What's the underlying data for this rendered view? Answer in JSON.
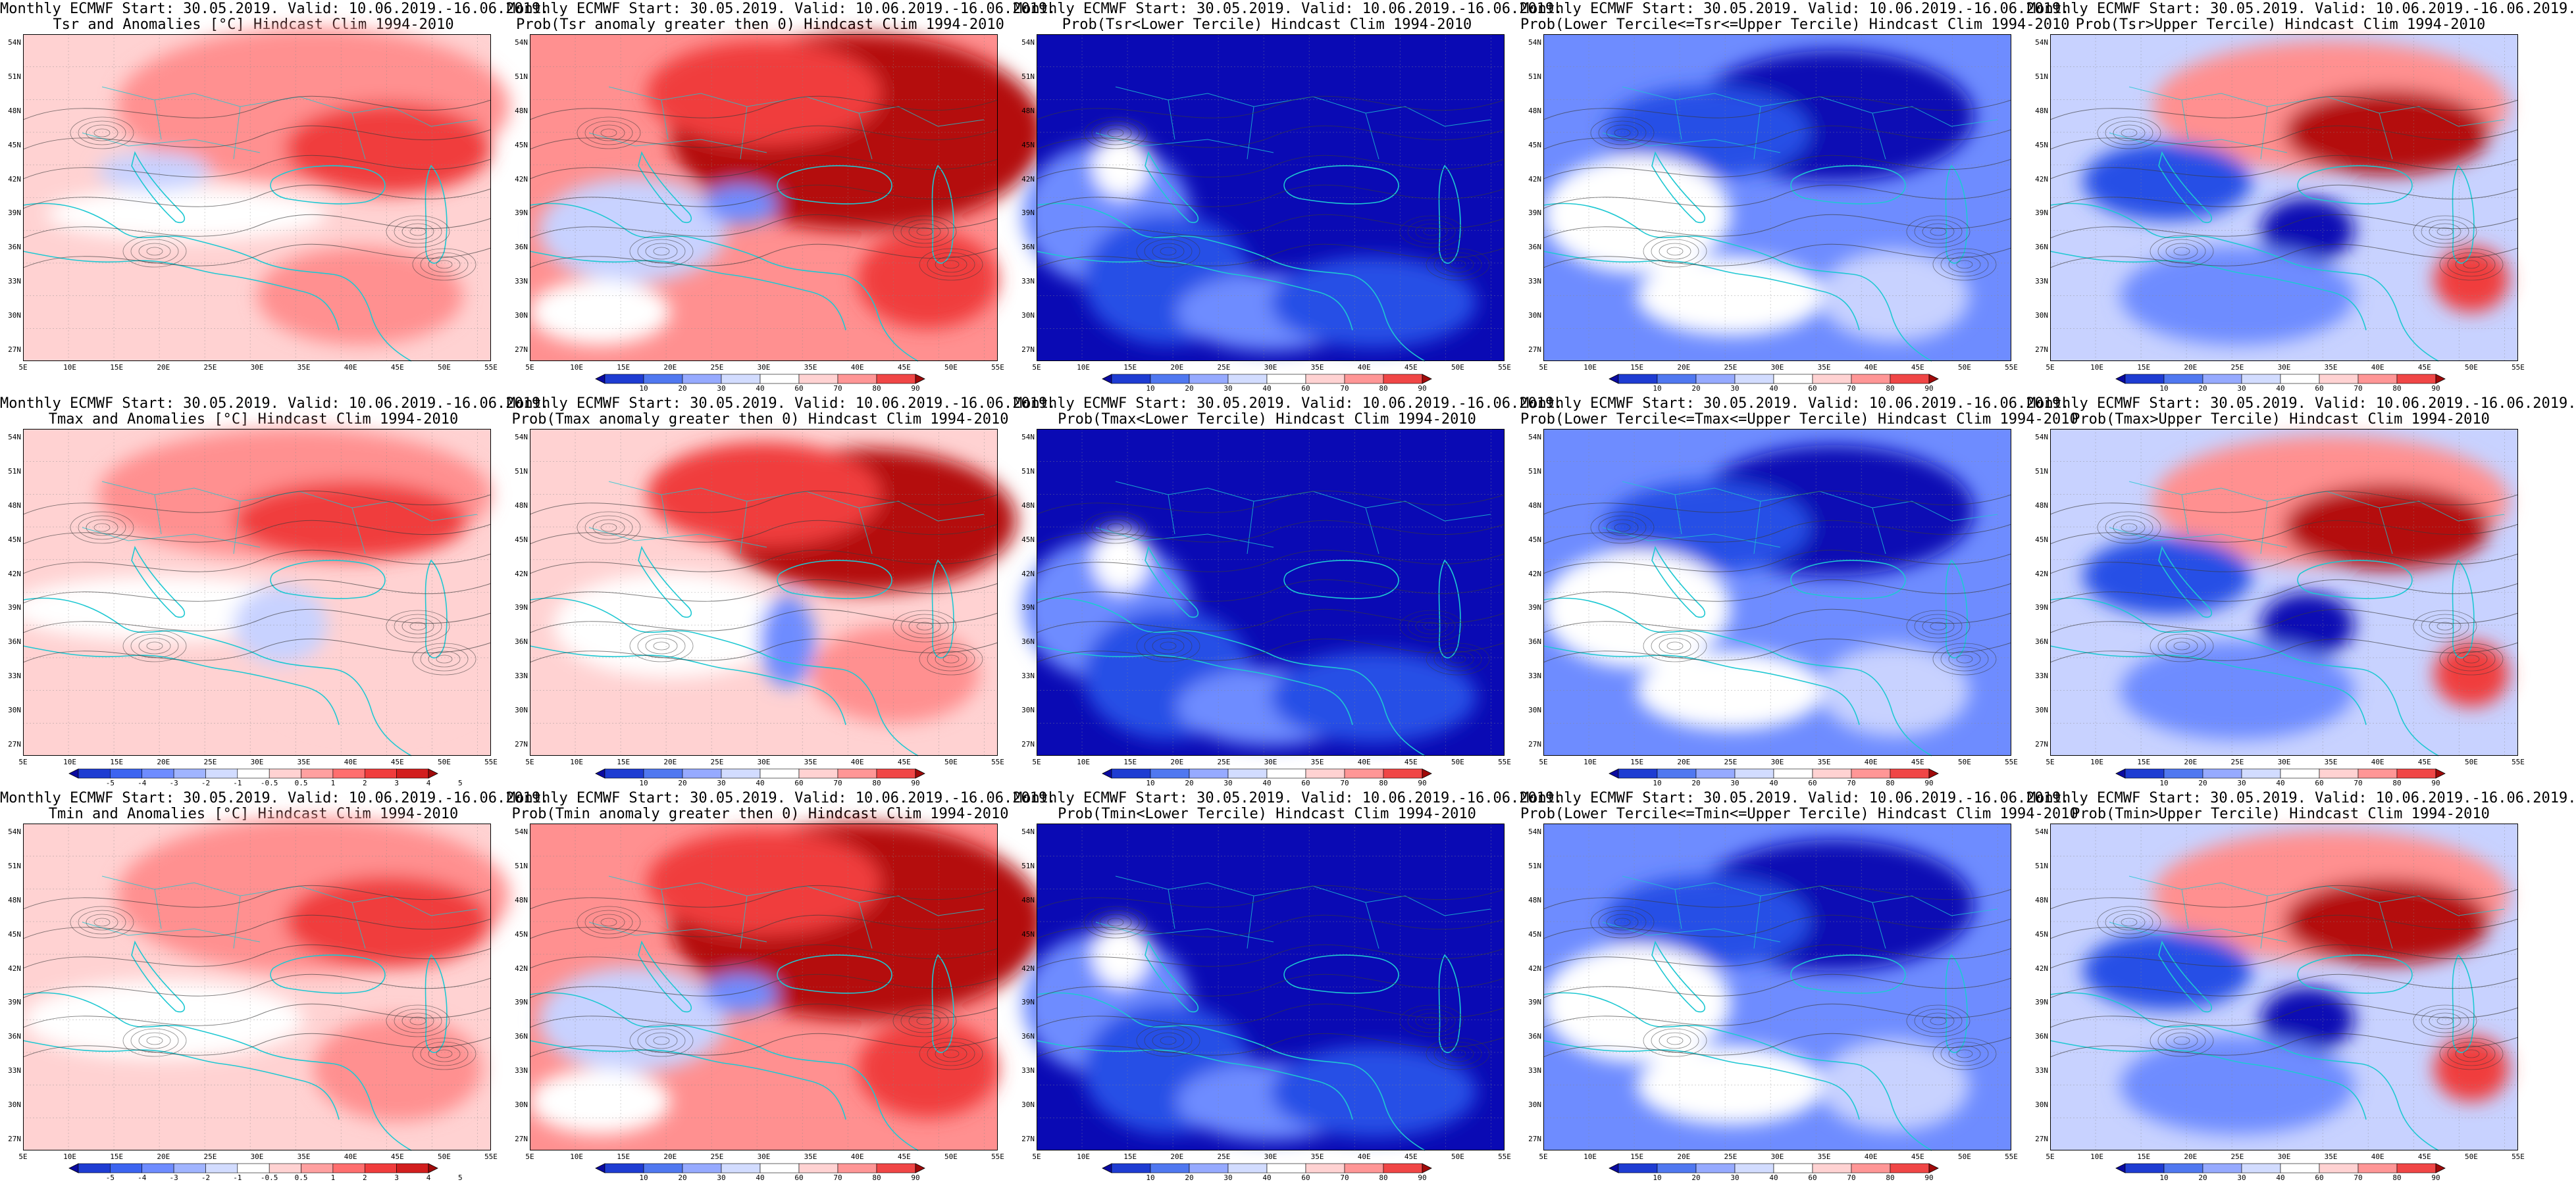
{
  "axes": {
    "lat_ticks": [
      "54N",
      "51N",
      "48N",
      "45N",
      "42N",
      "39N",
      "36N",
      "33N",
      "30N",
      "27N"
    ],
    "lon_ticks": [
      "5E",
      "10E",
      "15E",
      "20E",
      "25E",
      "30E",
      "35E",
      "40E",
      "45E",
      "50E",
      "55E"
    ]
  },
  "legends": {
    "anomaly": {
      "labels": [
        "-5",
        "-4",
        "-3",
        "-2",
        "-1",
        "-0.5",
        "0.5",
        "1",
        "2",
        "3",
        "4",
        "5"
      ],
      "colors": [
        "#0a0aa0",
        "#1e3cd2",
        "#3c64f0",
        "#6e8cff",
        "#a0b4ff",
        "#d2dcff",
        "#ffffff",
        "#ffd2d2",
        "#ffa0a0",
        "#ff6e6e",
        "#f03c3c",
        "#d21e1e",
        "#a00a0a"
      ]
    },
    "probability": {
      "labels": [
        "10",
        "20",
        "30",
        "40",
        "60",
        "70",
        "80",
        "90"
      ],
      "colors": [
        "#0a0aa0",
        "#1e3cd2",
        "#5078f0",
        "#96aaff",
        "#d2dcff",
        "#ffffff",
        "#ffd2d2",
        "#ff9696",
        "#f04646",
        "#a00a0a"
      ]
    }
  },
  "map_colors": {
    "white": "#ffffff",
    "red_light": "#ffd2d2",
    "red_mid": "#ff9090",
    "red_strong": "#f03c3c",
    "red_dark": "#b40a0a",
    "blue_light": "#c8d2ff",
    "blue_mid": "#6e8cff",
    "blue_strong": "#2850e6",
    "blue_dark": "#0a0ab4",
    "coast": "#1ec8d2",
    "contour": "#3a3a3a"
  },
  "panels": [
    {
      "title1": "Monthly ECMWF Start: 30.05.2019. Valid: 10.06.2019.-16.06.2019.",
      "title2": "Tsr and Anomalies [°C] Hindcast Clim 1994-2010",
      "legend": "anomaly",
      "scheme": "anom_tsr",
      "colorbar": false
    },
    {
      "title1": "Monthly ECMWF Start: 30.05.2019. Valid: 10.06.2019.-16.06.2019.",
      "title2": "Prob(Tsr anomaly greater then 0) Hindcast Clim 1994-2010",
      "legend": "probability",
      "scheme": "warm_strong",
      "colorbar": true
    },
    {
      "title1": "Monthly ECMWF Start: 30.05.2019. Valid: 10.06.2019.-16.06.2019.",
      "title2": "Prob(Tsr<Lower Tercile) Hindcast Clim 1994-2010",
      "legend": "probability",
      "scheme": "cold_strong",
      "colorbar": true
    },
    {
      "title1": "Monthly ECMWF Start: 30.05.2019. Valid: 10.06.2019.-16.06.2019.",
      "title2": "Prob(Lower Tercile<=Tsr<=Upper Tercile) Hindcast Clim 1994-2010",
      "legend": "probability",
      "scheme": "middle",
      "colorbar": true
    },
    {
      "title1": "Monthly ECMWF Start: 30.05.2019. Valid: 10.06.2019.-16.06.2019.",
      "title2": "Prob(Tsr>Upper Tercile) Hindcast Clim 1994-2010",
      "legend": "probability",
      "scheme": "upper",
      "colorbar": true
    },
    {
      "title1": "Monthly ECMWF Start: 30.05.2019. Valid: 10.06.2019.-16.06.2019.",
      "title2": "Tmax and Anomalies [°C] Hindcast Clim 1994-2010",
      "legend": "anomaly",
      "scheme": "anom_tmax",
      "colorbar": true
    },
    {
      "title1": "Monthly ECMWF Start: 30.05.2019. Valid: 10.06.2019.-16.06.2019.",
      "title2": "Prob(Tmax anomaly greater then 0) Hindcast Clim 1994-2010",
      "legend": "probability",
      "scheme": "warm_mid",
      "colorbar": true
    },
    {
      "title1": "Monthly ECMWF Start: 30.05.2019. Valid: 10.06.2019.-16.06.2019.",
      "title2": "Prob(Tmax<Lower Tercile) Hindcast Clim 1994-2010",
      "legend": "probability",
      "scheme": "cold_strong",
      "colorbar": true
    },
    {
      "title1": "Monthly ECMWF Start: 30.05.2019. Valid: 10.06.2019.-16.06.2019.",
      "title2": "Prob(Lower Tercile<=Tmax<=Upper Tercile) Hindcast Clim 1994-2010",
      "legend": "probability",
      "scheme": "middle",
      "colorbar": true
    },
    {
      "title1": "Monthly ECMWF Start: 30.05.2019. Valid: 10.06.2019.-16.06.2019.",
      "title2": "Prob(Tmax>Upper Tercile) Hindcast Clim 1994-2010",
      "legend": "probability",
      "scheme": "upper",
      "colorbar": true
    },
    {
      "title1": "Monthly ECMWF Start: 30.05.2019. Valid: 10.06.2019.-16.06.2019.",
      "title2": "Tmin and Anomalies [°C] Hindcast Clim 1994-2010",
      "legend": "anomaly",
      "scheme": "anom_tmin",
      "colorbar": true
    },
    {
      "title1": "Monthly ECMWF Start: 30.05.2019. Valid: 10.06.2019.-16.06.2019.",
      "title2": "Prob(Tmin anomaly greater then 0) Hindcast Clim 1994-2010",
      "legend": "probability",
      "scheme": "warm_strong",
      "colorbar": true
    },
    {
      "title1": "Monthly ECMWF Start: 30.05.2019. Valid: 10.06.2019.-16.06.2019.",
      "title2": "Prob(Tmin<Lower Tercile) Hindcast Clim 1994-2010",
      "legend": "probability",
      "scheme": "cold_strong",
      "colorbar": true
    },
    {
      "title1": "Monthly ECMWF Start: 30.05.2019. Valid: 10.06.2019.-16.06.2019.",
      "title2": "Prob(Lower Tercile<=Tmin<=Upper Tercile) Hindcast Clim 1994-2010",
      "legend": "probability",
      "scheme": "middle",
      "colorbar": true
    },
    {
      "title1": "Monthly ECMWF Start: 30.05.2019. Valid: 10.06.2019.-16.06.2019.",
      "title2": "Prob(Tmin>Upper Tercile) Hindcast Clim 1994-2010",
      "legend": "probability",
      "scheme": "upper",
      "colorbar": true
    }
  ]
}
